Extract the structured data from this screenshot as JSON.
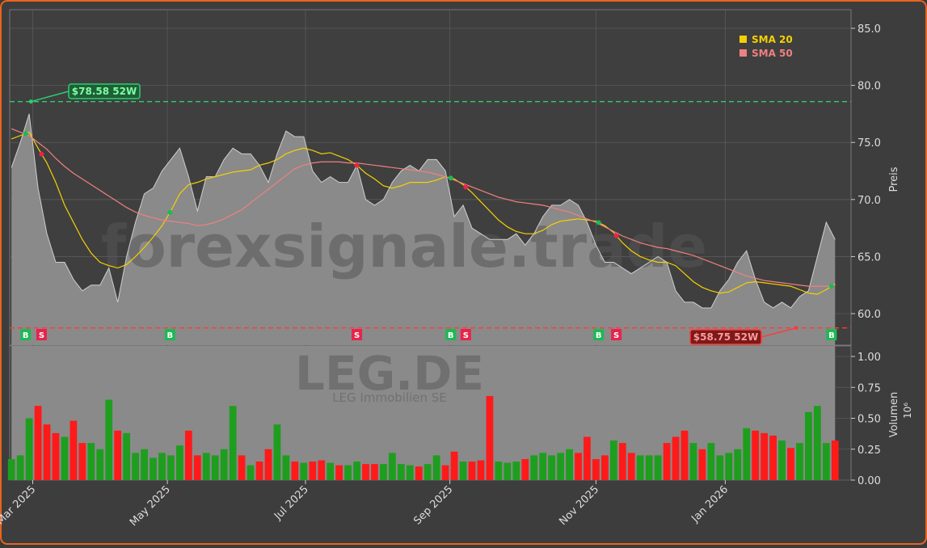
{
  "chart_data": {
    "type": "stock",
    "watermark": "forexsignale.trade",
    "symbol": "LEG.DE",
    "company": "LEG Immobilien SE",
    "ylabel": "Preis",
    "volume_label": "Volumen",
    "volume_scale_label": "10⁶",
    "x": [
      0,
      1,
      2,
      3,
      4,
      5,
      6,
      7,
      8,
      9,
      10,
      11,
      12,
      13,
      14,
      15,
      16,
      17,
      18,
      19,
      20,
      21,
      22,
      23,
      24,
      25,
      26,
      27,
      28,
      29,
      30,
      31,
      32,
      33,
      34,
      35,
      36,
      37,
      38,
      39,
      40,
      41,
      42,
      43,
      44,
      45,
      46,
      47,
      48,
      49,
      50,
      51,
      52,
      53,
      54,
      55,
      56,
      57,
      58,
      59,
      60,
      61,
      62,
      63,
      64,
      65,
      66,
      67,
      68,
      69,
      70,
      71,
      72,
      73,
      74,
      75,
      76,
      77,
      78,
      79,
      80,
      81,
      82,
      83,
      84,
      85,
      86,
      87,
      88,
      89,
      90,
      91,
      92,
      93
    ],
    "xlim": [
      -0.2,
      94.8
    ],
    "xticks": [
      {
        "value": 2.4,
        "label": "Mar 2025"
      },
      {
        "value": 17.6,
        "label": "May 2025"
      },
      {
        "value": 33.2,
        "label": "Jul 2025"
      },
      {
        "value": 49.5,
        "label": "Sep 2025"
      },
      {
        "value": 66.0,
        "label": "Nov 2025"
      },
      {
        "value": 80.6,
        "label": "Jan 2026"
      }
    ],
    "ylim": [
      57.24,
      86.63
    ],
    "yticks": [
      {
        "value": 60,
        "label": "60.0"
      },
      {
        "value": 65,
        "label": "65.0"
      },
      {
        "value": 70,
        "label": "70.0"
      },
      {
        "value": 75,
        "label": "75.0"
      },
      {
        "value": 80,
        "label": "80.0"
      },
      {
        "value": 85,
        "label": "85.0"
      }
    ],
    "close": {
      "color": "#8a8a8a",
      "values": [
        72.8,
        75,
        77.5,
        71,
        67,
        64.5,
        64.5,
        63,
        62,
        62.5,
        62.5,
        64,
        61,
        65,
        68,
        70.5,
        71,
        72.5,
        73.5,
        74.5,
        72,
        69,
        72,
        72,
        73.5,
        74.5,
        74,
        74,
        73,
        71.5,
        74,
        76,
        75.5,
        75.5,
        72.5,
        71.5,
        72,
        71.5,
        71.5,
        73,
        70,
        69.5,
        70,
        71.5,
        72.5,
        73,
        72.5,
        73.5,
        73.5,
        72.5,
        68.5,
        69.5,
        67.5,
        67,
        66.5,
        66.5,
        66.5,
        67,
        66,
        67,
        68.5,
        69.5,
        69.5,
        70,
        69.5,
        68,
        66,
        64.5,
        64.5,
        64,
        63.5,
        64,
        64.5,
        65,
        64.5,
        62,
        61,
        61,
        60.5,
        60.5,
        62,
        63,
        64.5,
        65.5,
        63,
        61,
        60.5,
        61,
        60.5,
        61.5,
        62,
        65,
        68,
        66.5
      ]
    },
    "series": [
      {
        "name": "SMA 20",
        "color": "#f5d000",
        "values": [
          75.3,
          75.6,
          75.9,
          74.5,
          73.2,
          71.5,
          69.5,
          68,
          66.5,
          65.3,
          64.5,
          64.2,
          64,
          64.3,
          65,
          65.8,
          66.7,
          67.7,
          69,
          70.5,
          71.3,
          71.5,
          71.8,
          72,
          72.2,
          72.4,
          72.5,
          72.6,
          73,
          73.2,
          73.5,
          74,
          74.3,
          74.5,
          74.3,
          74,
          74.1,
          73.8,
          73.5,
          73,
          72.3,
          71.8,
          71.2,
          71,
          71.2,
          71.5,
          71.5,
          71.5,
          71.7,
          72,
          71.8,
          71.3,
          70.6,
          69.8,
          69,
          68.2,
          67.6,
          67.2,
          67,
          67,
          67.3,
          67.8,
          68.1,
          68.2,
          68.3,
          68.2,
          68.1,
          67.7,
          67.1,
          66.2,
          65.5,
          65,
          64.7,
          64.5,
          64.5,
          64.2,
          63.5,
          62.8,
          62.3,
          62,
          61.8,
          61.9,
          62.3,
          62.7,
          62.8,
          62.7,
          62.6,
          62.5,
          62.4,
          62.1,
          61.8,
          61.7,
          62.1,
          62.6
        ]
      },
      {
        "name": "SMA 50",
        "color": "#f08080",
        "values": [
          76.2,
          75.9,
          75.6,
          75,
          74.4,
          73.6,
          72.9,
          72.3,
          71.8,
          71.3,
          70.8,
          70.3,
          69.8,
          69.3,
          68.9,
          68.6,
          68.4,
          68.2,
          68.1,
          68,
          67.9,
          67.7,
          67.8,
          68,
          68.3,
          68.7,
          69.1,
          69.7,
          70.3,
          70.9,
          71.5,
          72.1,
          72.7,
          73,
          73.2,
          73.3,
          73.3,
          73.3,
          73.2,
          73.2,
          73.1,
          73,
          72.9,
          72.8,
          72.7,
          72.6,
          72.5,
          72.4,
          72.2,
          72,
          71.7,
          71.4,
          71.1,
          70.8,
          70.5,
          70.2,
          70,
          69.8,
          69.7,
          69.6,
          69.5,
          69.3,
          69.1,
          68.9,
          68.6,
          68.3,
          68,
          67.6,
          67.2,
          66.8,
          66.5,
          66.2,
          66,
          65.8,
          65.7,
          65.5,
          65.3,
          65.1,
          64.8,
          64.5,
          64.2,
          63.9,
          63.6,
          63.3,
          63.1,
          62.9,
          62.8,
          62.7,
          62.6,
          62.5,
          62.4,
          62.4,
          62.4,
          62.5
        ]
      }
    ],
    "high_52w": {
      "value": 78.58,
      "label": "$78.58 52W",
      "x": 2.2,
      "color": "#2ecc71"
    },
    "low_52w": {
      "value": 58.75,
      "label": "$58.75 52W",
      "x": 88.6,
      "color": "#ff3b3b"
    },
    "signals": {
      "x": [
        1.6,
        3.4,
        17.9,
        39.0,
        49.6,
        51.3,
        66.3,
        68.3,
        92.6
      ],
      "labels": [
        "B",
        "S",
        "B",
        "S",
        "B",
        "S",
        "B",
        "S",
        "B"
      ],
      "buy_color": "#1db954",
      "sell_color": "#e8234a"
    },
    "volume": {
      "up_color": "#1e9e1e",
      "down_color": "#ff1a1a",
      "values": [
        0.17,
        0.2,
        0.5,
        0.6,
        0.45,
        0.38,
        0.35,
        0.48,
        0.3,
        0.3,
        0.25,
        0.65,
        0.4,
        0.38,
        0.22,
        0.25,
        0.18,
        0.22,
        0.2,
        0.28,
        0.4,
        0.2,
        0.22,
        0.2,
        0.25,
        0.6,
        0.2,
        0.12,
        0.15,
        0.25,
        0.45,
        0.2,
        0.15,
        0.14,
        0.15,
        0.16,
        0.14,
        0.12,
        0.12,
        0.15,
        0.13,
        0.13,
        0.13,
        0.22,
        0.13,
        0.12,
        0.11,
        0.13,
        0.2,
        0.12,
        0.23,
        0.15,
        0.15,
        0.16,
        0.68,
        0.15,
        0.14,
        0.15,
        0.17,
        0.2,
        0.22,
        0.2,
        0.22,
        0.25,
        0.22,
        0.35,
        0.17,
        0.2,
        0.32,
        0.3,
        0.22,
        0.2,
        0.2,
        0.2,
        0.3,
        0.35,
        0.4,
        0.3,
        0.25,
        0.3,
        0.2,
        0.22,
        0.25,
        0.42,
        0.4,
        0.38,
        0.36,
        0.32,
        0.26,
        0.3,
        0.55,
        0.6,
        0.3,
        0.32
      ]
    },
    "vlim": [
      0,
      1.085
    ],
    "vticks": [
      {
        "value": 0,
        "label": "0.00"
      },
      {
        "value": 0.25,
        "label": "0.25"
      },
      {
        "value": 0.5,
        "label": "0.50"
      },
      {
        "value": 0.75,
        "label": "0.75"
      },
      {
        "value": 1.0,
        "label": "1.00"
      }
    ],
    "grid": true,
    "legend": "upper right"
  }
}
